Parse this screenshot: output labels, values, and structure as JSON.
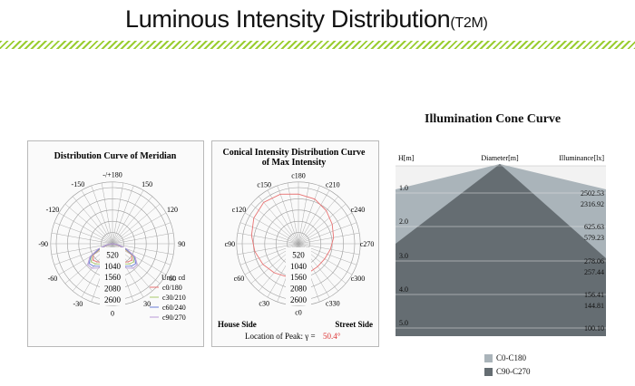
{
  "header": {
    "title": "Luminous Intensity Distribution",
    "model": "(T2M)"
  },
  "meridian": {
    "title": "Distribution Curve of Meridian",
    "unit": "Unit: cd",
    "angles": [
      "-/+180",
      "-150",
      "150",
      "-120",
      "120",
      "-90",
      "90",
      "-60",
      "60",
      "-30",
      "30",
      "0"
    ],
    "radial": [
      "520",
      "1040",
      "1560",
      "2080",
      "2600"
    ],
    "legend": [
      {
        "label": "c0/180",
        "color": "#e87272"
      },
      {
        "label": "c30/210",
        "color": "#a8c86a"
      },
      {
        "label": "c60/240",
        "color": "#6a7fd8"
      },
      {
        "label": "c90/270",
        "color": "#b99ad6"
      }
    ]
  },
  "conical": {
    "title_line1": "Conical Intensity Distribution Curve",
    "title_line2": "of Max Intensity",
    "angles": [
      "c180",
      "c150",
      "c210",
      "c120",
      "c240",
      "c90",
      "c270",
      "c60",
      "c300",
      "c30",
      "c330",
      "c0"
    ],
    "radial": [
      "520",
      "1040",
      "1560",
      "2080",
      "2600"
    ],
    "house_side": "House Side",
    "street_side": "Street Side",
    "peak_label": "Location of Peak:  γ  =",
    "peak_value": "50.4°"
  },
  "cone": {
    "title": "Illumination Cone Curve",
    "col_h": "H[m]",
    "col_d": "Diameter[m]",
    "col_e": "Illuminance[lx]",
    "rows": [
      {
        "h": "1.0",
        "e1": "2502.53",
        "e2": "2316.92"
      },
      {
        "h": "2.0",
        "e1": "625.63",
        "e2": "579.23"
      },
      {
        "h": "3.0",
        "e1": "278.06",
        "e2": "257.44"
      },
      {
        "h": "4.0",
        "e1": "156.41",
        "e2": "144.81"
      },
      {
        "h": "5.0",
        "e1": "100.10",
        "e2": "92.68"
      }
    ],
    "legend": [
      {
        "label": "C0-C180",
        "color": "#aab4ba"
      },
      {
        "label": "C90-C270",
        "color": "#656d72"
      }
    ]
  },
  "chart_data": [
    {
      "type": "polar",
      "title": "Distribution Curve of Meridian",
      "unit": "cd",
      "radial_ticks": [
        520,
        1040,
        1560,
        2080,
        2600
      ],
      "series": [
        {
          "name": "c0/180",
          "angles": [
            -90,
            -80,
            -70,
            -60,
            -50,
            -40,
            -30,
            -20,
            -10,
            0,
            10,
            20,
            30,
            40,
            50,
            60,
            70,
            80,
            90
          ],
          "values": [
            0,
            120,
            480,
            1020,
            1180,
            1100,
            980,
            900,
            860,
            850,
            860,
            900,
            980,
            1100,
            1180,
            1020,
            480,
            120,
            0
          ]
        },
        {
          "name": "c30/210",
          "angles": [
            -90,
            -80,
            -70,
            -60,
            -50,
            -40,
            -30,
            -20,
            -10,
            0,
            10,
            20,
            30,
            40,
            50,
            60,
            70,
            80,
            90
          ],
          "values": [
            0,
            160,
            540,
            1100,
            1300,
            1220,
            1080,
            960,
            900,
            880,
            900,
            960,
            1080,
            1220,
            1300,
            1100,
            540,
            160,
            0
          ]
        },
        {
          "name": "c60/240",
          "angles": [
            -90,
            -80,
            -70,
            -60,
            -50,
            -40,
            -30,
            -20,
            -10,
            0,
            10,
            20,
            30,
            40,
            50,
            60,
            70,
            80,
            90
          ],
          "values": [
            0,
            200,
            620,
            1150,
            1420,
            1360,
            1200,
            1020,
            920,
            880,
            920,
            1020,
            1200,
            1360,
            1420,
            1150,
            620,
            200,
            0
          ]
        },
        {
          "name": "c90/270",
          "angles": [
            -90,
            -80,
            -70,
            -60,
            -50,
            -40,
            -30,
            -20,
            -10,
            0,
            10,
            20,
            30,
            40,
            50,
            60,
            70,
            80,
            90
          ],
          "values": [
            0,
            260,
            700,
            1200,
            1500,
            1480,
            1300,
            1100,
            960,
            880,
            960,
            1100,
            1300,
            1480,
            1500,
            1200,
            700,
            260,
            0
          ]
        }
      ]
    },
    {
      "type": "polar",
      "title": "Conical Intensity Distribution Curve of Max Intensity",
      "radial_ticks": [
        520,
        1040,
        1560,
        2080,
        2600
      ],
      "series": [
        {
          "name": "gamma 50.4",
          "angles": [
            0,
            20,
            40,
            60,
            80,
            100,
            120,
            140,
            160,
            180,
            200,
            220,
            240,
            260,
            280,
            300,
            320,
            340
          ],
          "values": [
            1500,
            1620,
            1750,
            1900,
            2050,
            2200,
            2380,
            2500,
            2440,
            2300,
            2200,
            2000,
            1800,
            1650,
            1500,
            1400,
            1380,
            1420
          ]
        }
      ],
      "peak_location": "γ = 50.4°"
    },
    {
      "type": "table",
      "title": "Illumination Cone Curve",
      "columns": [
        "H[m]",
        "Illuminance C0-C180 [lx]",
        "Illuminance C90-C270 [lx]"
      ],
      "rows": [
        [
          1.0,
          2502.53,
          2316.92
        ],
        [
          2.0,
          625.63,
          579.23
        ],
        [
          3.0,
          278.06,
          257.44
        ],
        [
          4.0,
          156.41,
          144.81
        ],
        [
          5.0,
          100.1,
          92.68
        ]
      ]
    }
  ]
}
